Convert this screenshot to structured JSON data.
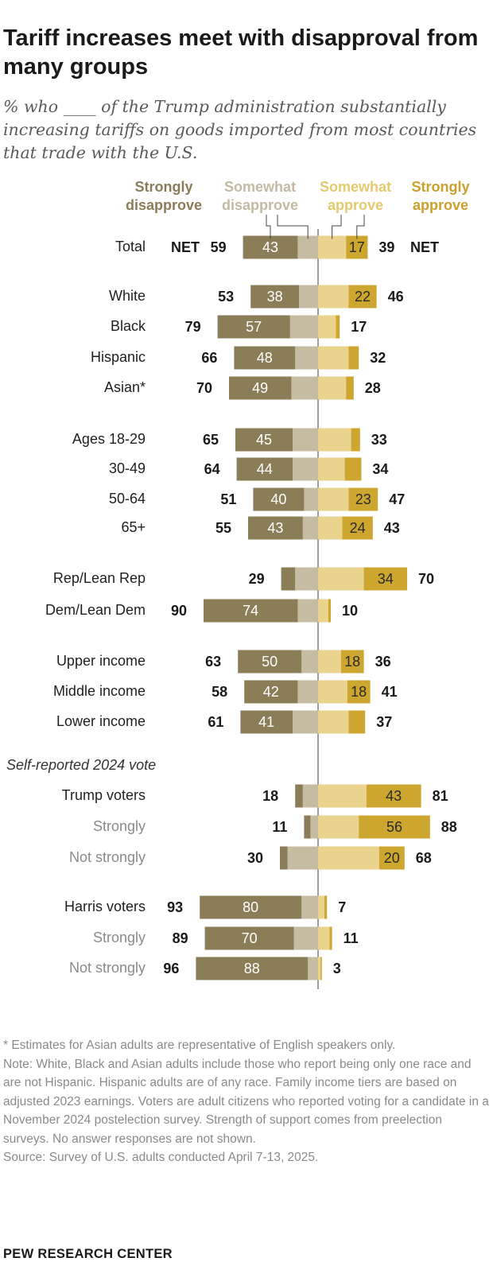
{
  "title": "Tariff increases meet with disapproval from many groups",
  "subtitle": "% who ____ of the Trump administration substantially increasing tariffs on goods imported from most countries that trade with the U.S.",
  "colors": {
    "strongly_disapprove": "#8c7d59",
    "somewhat_disapprove": "#c6bba3",
    "somewhat_approve": "#ead38c",
    "strongly_approve": "#cca62e",
    "label_strongly_disapprove": "#8b7c58",
    "label_somewhat_disapprove": "#c4b9a2",
    "label_somewhat_approve": "#e5c96d",
    "label_strongly_approve": "#c9a12b"
  },
  "chart_data": {
    "type": "bar",
    "orientation": "horizontal-diverging",
    "series": [
      {
        "name": "Strongly disapprove",
        "line1": "Strongly",
        "line2": "disapprove"
      },
      {
        "name": "Somewhat disapprove",
        "line1": "Somewhat",
        "line2": "disapprove"
      },
      {
        "name": "Somewhat approve",
        "line1": "Somewhat",
        "line2": "approve"
      },
      {
        "name": "Strongly approve",
        "line1": "Strongly",
        "line2": "approve"
      }
    ],
    "net_label": "NET",
    "section_heading": "Self-reported 2024 vote",
    "rows": [
      {
        "label": "Total",
        "strongly_disapprove": 43,
        "somewhat_disapprove": 16,
        "somewhat_approve": 22,
        "strongly_approve": 17,
        "net_disapprove": 59,
        "net_approve": 39,
        "show_sd": true,
        "show_sa": true,
        "is_total": true
      },
      {
        "label": "White",
        "strongly_disapprove": 38,
        "somewhat_disapprove": 15,
        "somewhat_approve": 24,
        "strongly_approve": 22,
        "net_disapprove": 53,
        "net_approve": 46,
        "show_sd": true,
        "show_sa": true
      },
      {
        "label": "Black",
        "strongly_disapprove": 57,
        "somewhat_disapprove": 22,
        "somewhat_approve": 14,
        "strongly_approve": 3,
        "net_disapprove": 79,
        "net_approve": 17,
        "show_sd": true,
        "show_sa": false
      },
      {
        "label": "Hispanic",
        "strongly_disapprove": 48,
        "somewhat_disapprove": 18,
        "somewhat_approve": 24,
        "strongly_approve": 8,
        "net_disapprove": 66,
        "net_approve": 32,
        "show_sd": true,
        "show_sa": false
      },
      {
        "label": "Asian*",
        "strongly_disapprove": 49,
        "somewhat_disapprove": 21,
        "somewhat_approve": 22,
        "strongly_approve": 6,
        "net_disapprove": 70,
        "net_approve": 28,
        "show_sd": true,
        "show_sa": false
      },
      {
        "label": "Ages 18-29",
        "strongly_disapprove": 45,
        "somewhat_disapprove": 20,
        "somewhat_approve": 26,
        "strongly_approve": 7,
        "net_disapprove": 65,
        "net_approve": 33,
        "show_sd": true,
        "show_sa": false
      },
      {
        "label": "30-49",
        "strongly_disapprove": 44,
        "somewhat_disapprove": 20,
        "somewhat_approve": 21,
        "strongly_approve": 13,
        "net_disapprove": 64,
        "net_approve": 34,
        "show_sd": true,
        "show_sa": false
      },
      {
        "label": "50-64",
        "strongly_disapprove": 40,
        "somewhat_disapprove": 11,
        "somewhat_approve": 24,
        "strongly_approve": 23,
        "net_disapprove": 51,
        "net_approve": 47,
        "show_sd": true,
        "show_sa": true
      },
      {
        "label": "65+",
        "strongly_disapprove": 43,
        "somewhat_disapprove": 12,
        "somewhat_approve": 19,
        "strongly_approve": 24,
        "net_disapprove": 55,
        "net_approve": 43,
        "show_sd": true,
        "show_sa": true
      },
      {
        "label": "Rep/Lean Rep",
        "strongly_disapprove": 11,
        "somewhat_disapprove": 18,
        "somewhat_approve": 36,
        "strongly_approve": 34,
        "net_disapprove": 29,
        "net_approve": 70,
        "show_sd": false,
        "show_sa": true
      },
      {
        "label": "Dem/Lean Dem",
        "strongly_disapprove": 74,
        "somewhat_disapprove": 16,
        "somewhat_approve": 8,
        "strongly_approve": 2,
        "net_disapprove": 90,
        "net_approve": 10,
        "show_sd": true,
        "show_sa": false
      },
      {
        "label": "Upper income",
        "strongly_disapprove": 50,
        "somewhat_disapprove": 13,
        "somewhat_approve": 18,
        "strongly_approve": 18,
        "net_disapprove": 63,
        "net_approve": 36,
        "show_sd": true,
        "show_sa": true
      },
      {
        "label": "Middle income",
        "strongly_disapprove": 42,
        "somewhat_disapprove": 16,
        "somewhat_approve": 23,
        "strongly_approve": 18,
        "net_disapprove": 58,
        "net_approve": 41,
        "show_sd": true,
        "show_sa": true
      },
      {
        "label": "Lower income",
        "strongly_disapprove": 41,
        "somewhat_disapprove": 20,
        "somewhat_approve": 24,
        "strongly_approve": 13,
        "net_disapprove": 61,
        "net_approve": 37,
        "show_sd": true,
        "show_sa": false
      },
      {
        "label": "Trump voters",
        "strongly_disapprove": 6,
        "somewhat_disapprove": 12,
        "somewhat_approve": 38,
        "strongly_approve": 43,
        "net_disapprove": 18,
        "net_approve": 81,
        "show_sd": false,
        "show_sa": true
      },
      {
        "label": "Strongly",
        "strongly_disapprove": 5,
        "somewhat_disapprove": 6,
        "somewhat_approve": 32,
        "strongly_approve": 56,
        "net_disapprove": 11,
        "net_approve": 88,
        "show_sd": false,
        "show_sa": true,
        "muted": true
      },
      {
        "label": "Not strongly",
        "strongly_disapprove": 6,
        "somewhat_disapprove": 24,
        "somewhat_approve": 48,
        "strongly_approve": 20,
        "net_disapprove": 30,
        "net_approve": 68,
        "show_sd": false,
        "show_sa": true,
        "muted": true
      },
      {
        "label": "Harris voters",
        "strongly_disapprove": 80,
        "somewhat_disapprove": 13,
        "somewhat_approve": 5,
        "strongly_approve": 2,
        "net_disapprove": 93,
        "net_approve": 7,
        "show_sd": true,
        "show_sa": false
      },
      {
        "label": "Strongly",
        "strongly_disapprove": 70,
        "somewhat_disapprove": 19,
        "somewhat_approve": 9,
        "strongly_approve": 2,
        "net_disapprove": 89,
        "net_approve": 11,
        "show_sd": true,
        "show_sa": false,
        "muted": true
      },
      {
        "label": "Not strongly",
        "strongly_disapprove": 88,
        "somewhat_disapprove": 8,
        "somewhat_approve": 2,
        "strongly_approve": 1,
        "net_disapprove": 96,
        "net_approve": 3,
        "show_sd": true,
        "show_sa": false,
        "muted": true
      }
    ]
  },
  "notes": {
    "asterisk": "* Estimates for Asian adults are representative of English speakers only.",
    "note": "Note: White, Black and Asian adults include those who report being only one race and are not Hispanic. Hispanic adults are of any race. Family income tiers are based on adjusted 2023 earnings. Voters are adult citizens who reported voting for a candidate in a November 2024 postelection survey. Strength of support comes from preelection surveys. No answer responses are not shown.",
    "source": "Source: Survey of U.S. adults conducted April 7-13, 2025."
  },
  "logo": "PEW RESEARCH CENTER"
}
